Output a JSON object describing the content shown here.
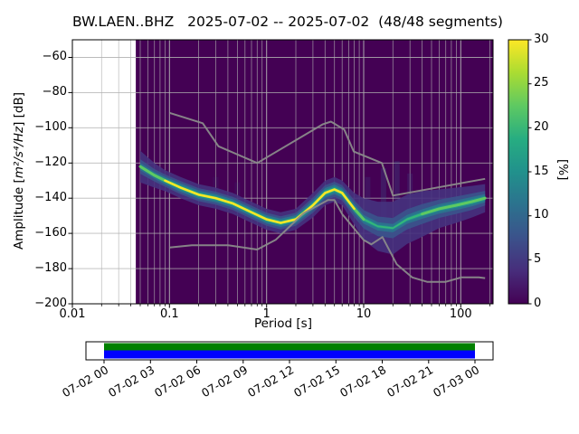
{
  "figure": {
    "title": "BW.LAEN..BHZ   2025-07-02 -- 2025-07-02  (48/48 segments)"
  },
  "axes": {
    "xlabel": "Period [s]",
    "ylabel_prefix": "Amplitude [",
    "ylabel_math": "m²/s⁴/Hz",
    "ylabel_suffix": "] [dB]",
    "x_ticks": [
      {
        "v": 0.01,
        "label": "0.01"
      },
      {
        "v": 0.1,
        "label": "0.1"
      },
      {
        "v": 1,
        "label": "1"
      },
      {
        "v": 10,
        "label": "10"
      },
      {
        "v": 100,
        "label": "100"
      }
    ],
    "y_ticks": [
      {
        "v": -60,
        "label": "−60"
      },
      {
        "v": -80,
        "label": "−80"
      },
      {
        "v": -100,
        "label": "−100"
      },
      {
        "v": -120,
        "label": "−120"
      },
      {
        "v": -140,
        "label": "−140"
      },
      {
        "v": -160,
        "label": "−160"
      },
      {
        "v": -180,
        "label": "−180"
      },
      {
        "v": -200,
        "label": "−200"
      }
    ]
  },
  "colorbar": {
    "label": "[%]",
    "ticks": [
      {
        "v": 0,
        "label": "0"
      },
      {
        "v": 5,
        "label": "5"
      },
      {
        "v": 10,
        "label": "10"
      },
      {
        "v": 15,
        "label": "15"
      },
      {
        "v": 20,
        "label": "20"
      },
      {
        "v": 25,
        "label": "25"
      },
      {
        "v": 30,
        "label": "30"
      }
    ]
  },
  "timeline": {
    "tick_labels": [
      "07-02 00",
      "07-02 03",
      "07-02 06",
      "07-02 09",
      "07-02 12",
      "07-02 15",
      "07-02 18",
      "07-02 21",
      "07-03 00"
    ],
    "coverage_top_color": "#008000",
    "coverage_bottom_color": "#0000ff"
  },
  "colors": {
    "background": "#ffffff",
    "data_bg": "#440154",
    "grid": "#b0b0b0",
    "noise_model": "#8a8a8a",
    "frame": "#000000",
    "viridis": [
      "#440154",
      "#472d7b",
      "#3b528b",
      "#2c728e",
      "#21918c",
      "#27ad81",
      "#5ec962",
      "#aadc32",
      "#fde725"
    ]
  },
  "chart_data": {
    "type": "heatmap",
    "title": "BW.LAEN..BHZ   2025-07-02 -- 2025-07-02  (48/48 segments)",
    "station_id": "BW.LAEN..BHZ",
    "date_start": "2025-07-02",
    "date_end": "2025-07-02",
    "segments_used": 48,
    "segments_total": 48,
    "xlabel": "Period [s]",
    "ylabel": "Amplitude [m²/s⁴/Hz] [dB]",
    "xscale": "log",
    "xlim": [
      0.01,
      215
    ],
    "ylim": [
      -200,
      -50
    ],
    "grid": true,
    "colorbar_label": "[%]",
    "prob_range_pct": [
      0,
      30
    ],
    "colormap": "viridis",
    "data_period_min_s": 0.045,
    "mode_curve": {
      "periods_s": [
        0.05,
        0.07,
        0.09,
        0.13,
        0.2,
        0.3,
        0.45,
        0.7,
        1.0,
        1.4,
        2.0,
        3.0,
        4.0,
        5.0,
        6.0,
        8.0,
        10,
        14,
        20,
        28,
        40,
        60,
        90,
        130,
        178
      ],
      "db": [
        -122,
        -127,
        -130,
        -134,
        -138,
        -140,
        -143,
        -148,
        -152,
        -154,
        -152,
        -144,
        -137,
        -135,
        -137,
        -146,
        -152,
        -156,
        -157,
        -152,
        -149,
        -146,
        -144,
        -142,
        -140
      ],
      "halfwidth_db": [
        9,
        7,
        6,
        6,
        6,
        6,
        6,
        6,
        6,
        6,
        6,
        7,
        7,
        7,
        7,
        9,
        12,
        14,
        15,
        14,
        13,
        11,
        10,
        9,
        8
      ],
      "peak_probability_pct": [
        12,
        16,
        22,
        26,
        28,
        26,
        26,
        27,
        29,
        30,
        28,
        29,
        30,
        30,
        27,
        18,
        10,
        7,
        6,
        8,
        10,
        13,
        15,
        17,
        17
      ]
    },
    "noise_models": {
      "nhnm": {
        "periods_s": [
          0.1,
          0.22,
          0.32,
          0.8,
          3.8,
          4.6,
          6.3,
          7.9,
          15.4,
          20.0,
          178.0
        ],
        "db": [
          -91.5,
          -97.4,
          -110.5,
          -120.0,
          -98.0,
          -96.5,
          -101.0,
          -113.5,
          -120.0,
          -138.5,
          -129.0
        ]
      },
      "nlnm": {
        "periods_s": [
          0.1,
          0.17,
          0.4,
          0.8,
          1.24,
          2.4,
          4.3,
          5.0,
          6.0,
          10.0,
          12.0,
          15.6,
          21.9,
          31.6,
          45.0,
          70.0,
          101.0,
          154.0,
          178.0
        ],
        "db": [
          -168.0,
          -166.7,
          -166.7,
          -169.2,
          -163.7,
          -148.6,
          -141.1,
          -141.1,
          -149.0,
          -163.8,
          -166.2,
          -162.1,
          -177.5,
          -185.0,
          -187.5,
          -187.5,
          -185.0,
          -185.0,
          -185.4
        ]
      }
    },
    "streaks": [
      {
        "period_s": 11,
        "db_top": -128,
        "db_bottom": -152,
        "opacity": 0.22
      },
      {
        "period_s": 16,
        "db_top": -123,
        "db_bottom": -154,
        "opacity": 0.3
      },
      {
        "period_s": 22,
        "db_top": -119,
        "db_bottom": -156,
        "opacity": 0.3
      },
      {
        "period_s": 30,
        "db_top": -126,
        "db_bottom": -152,
        "opacity": 0.22
      },
      {
        "period_s": 0.3,
        "db_top": -128,
        "db_bottom": -136,
        "opacity": 0.12
      },
      {
        "period_s": 0.5,
        "db_top": -131,
        "db_bottom": -139,
        "opacity": 0.12
      }
    ],
    "band_layers": [
      {
        "k": 1.0,
        "color": "#46327e",
        "opacity": 0.9,
        "strength_scaled": 0
      },
      {
        "k": 0.62,
        "color": "#3b528b",
        "opacity": 0.95,
        "strength_scaled": 0.5
      },
      {
        "k": 0.4,
        "color": "#2c728e",
        "opacity": 1,
        "strength_scaled": 0.8
      },
      {
        "k": 0.24,
        "color": "#21918c",
        "opacity": 1,
        "strength_scaled": 1
      },
      {
        "k": 0.13,
        "color": "#35b779",
        "opacity": 1,
        "strength_scaled": 1
      }
    ],
    "time_coverage": {
      "tick_labels": [
        "07-02 00",
        "07-02 03",
        "07-02 06",
        "07-02 09",
        "07-02 12",
        "07-02 15",
        "07-02 18",
        "07-02 21",
        "07-03 00"
      ],
      "coverage_fraction": 1.0
    }
  }
}
